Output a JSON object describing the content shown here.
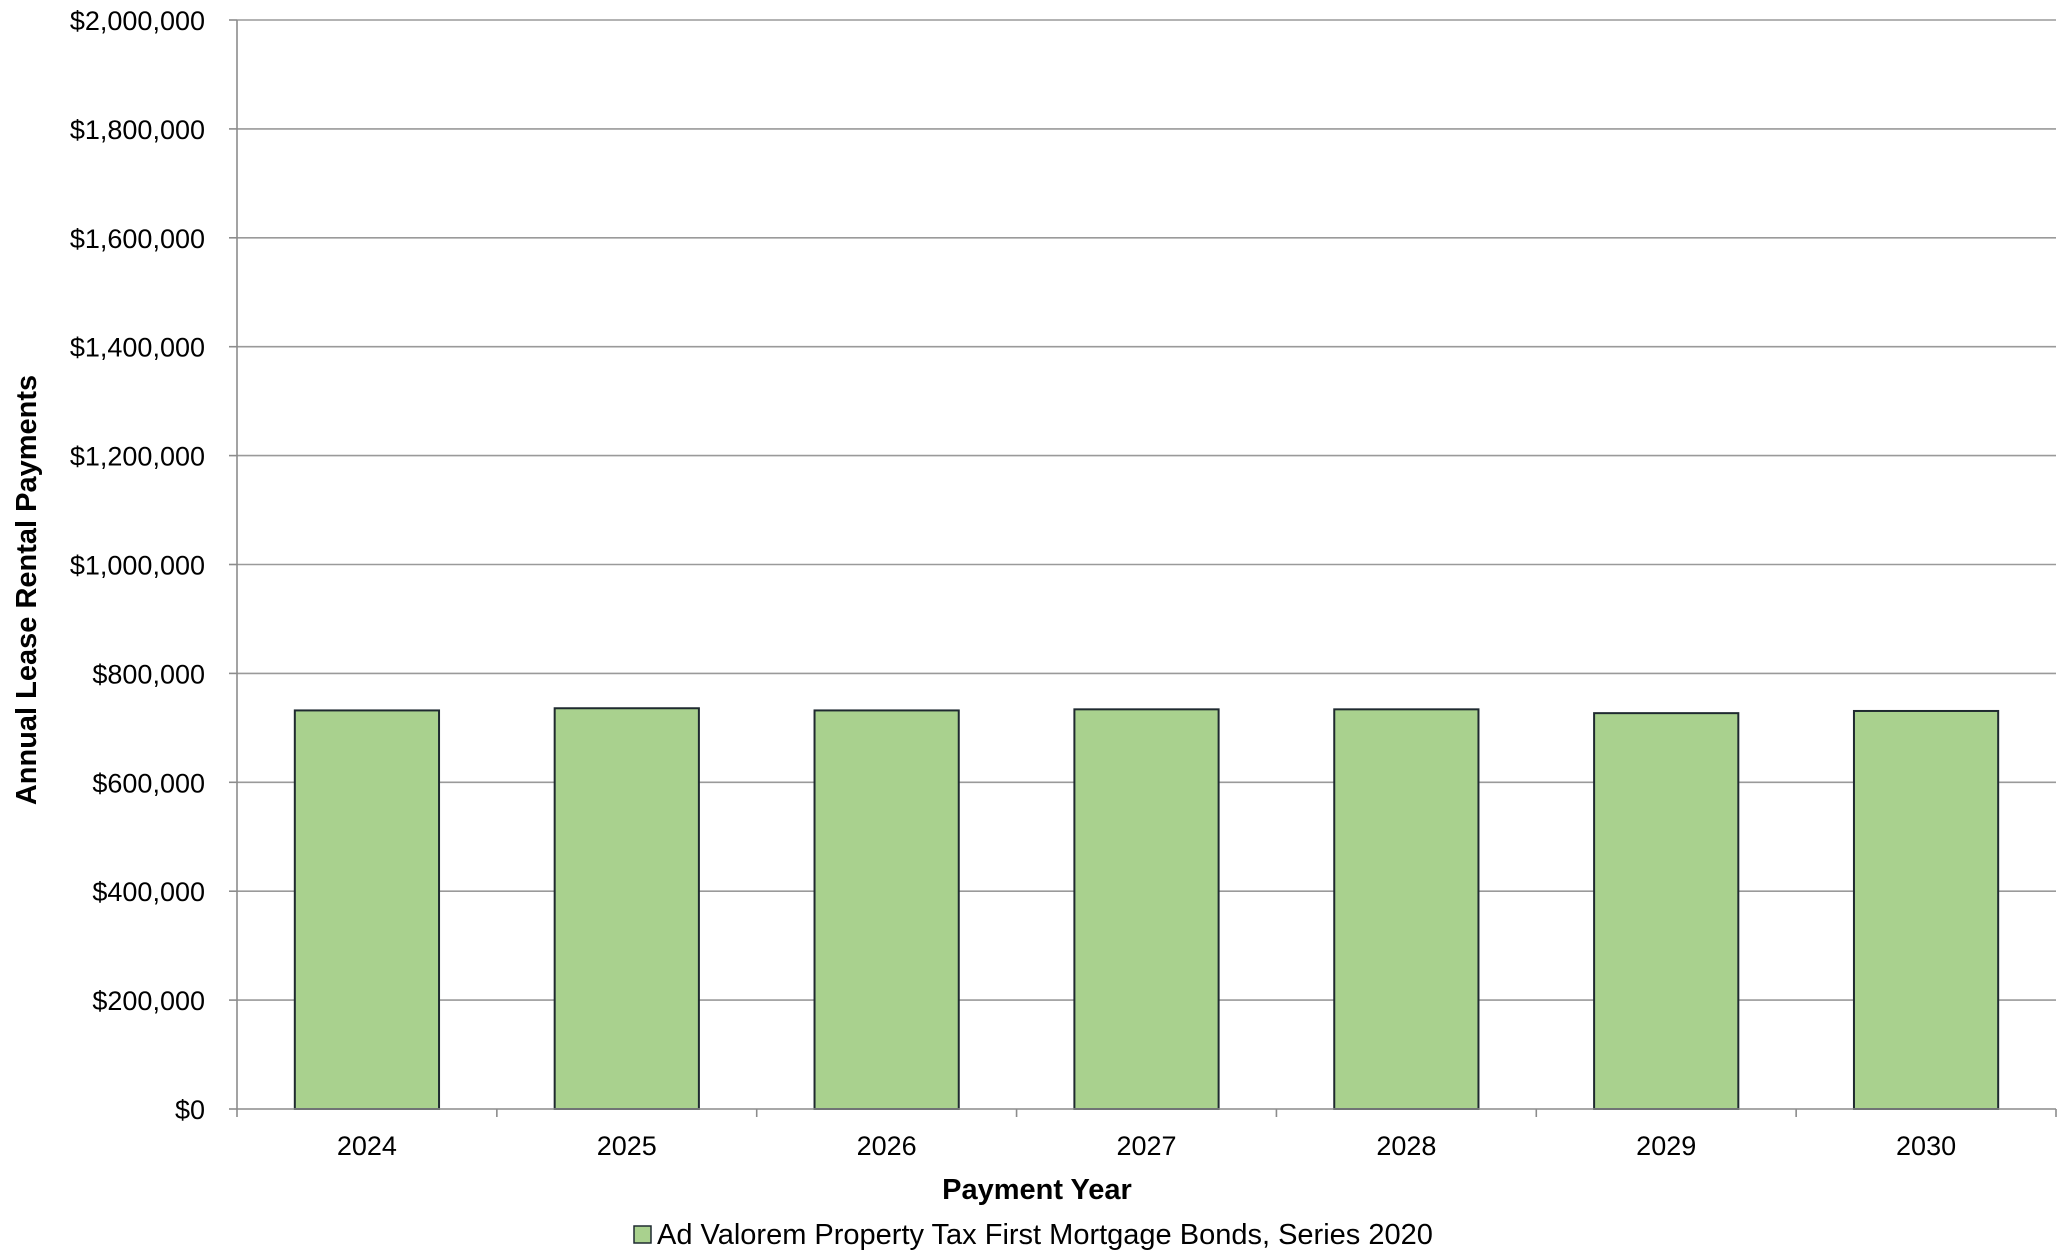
{
  "chart_data": {
    "type": "bar",
    "title": "",
    "xlabel": "Payment Year",
    "ylabel": "Annual Lease Rental Payments",
    "categories": [
      "2024",
      "2025",
      "2026",
      "2027",
      "2028",
      "2029",
      "2030"
    ],
    "series": [
      {
        "name": "Ad Valorem Property Tax First Mortgage Bonds, Series 2020",
        "color": "#a9d18e",
        "values": [
          732000,
          736000,
          732000,
          734000,
          734000,
          727000,
          731000
        ]
      }
    ],
    "ylim": [
      0,
      2000000
    ],
    "yticks": [
      0,
      200000,
      400000,
      600000,
      800000,
      1000000,
      1200000,
      1400000,
      1600000,
      1800000,
      2000000
    ],
    "ytick_labels": [
      "$0",
      "$200,000",
      "$400,000",
      "$600,000",
      "$800,000",
      "$1,000,000",
      "$1,200,000",
      "$1,400,000",
      "$1,600,000",
      "$1,800,000",
      "$2,000,000"
    ],
    "grid": true,
    "legend_position": "bottom"
  }
}
